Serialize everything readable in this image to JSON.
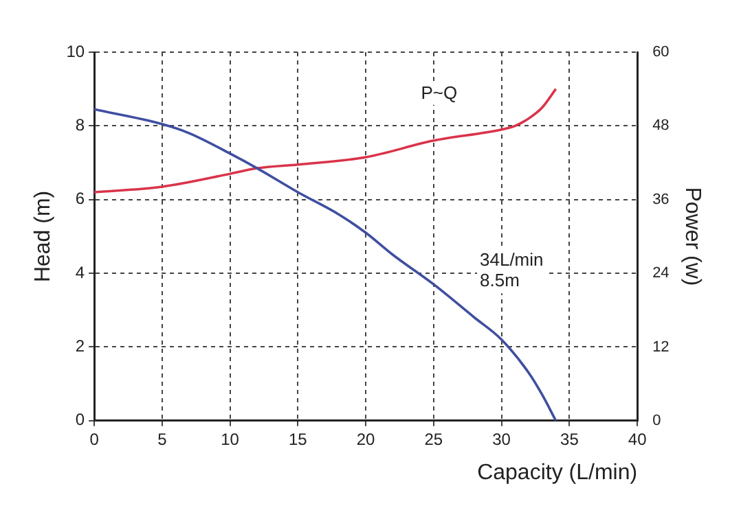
{
  "chart_data": {
    "type": "line",
    "xlabel": "Capacity (L/min)",
    "ylabel": "Head (m)",
    "y2label": "Power (w)",
    "xlim": [
      0,
      40
    ],
    "xticks": [
      0,
      5,
      10,
      15,
      20,
      25,
      30,
      35,
      40
    ],
    "ylim": [
      0,
      10
    ],
    "yticks": [
      0,
      2,
      4,
      6,
      8,
      10
    ],
    "y2lim": [
      0,
      60
    ],
    "y2ticks": [
      0,
      12,
      24,
      36,
      48,
      60
    ],
    "grid": true,
    "legend": false,
    "line_style": "solid",
    "marker": "none",
    "series": [
      {
        "color": "#3f4fa0",
        "x": [
          0,
          5,
          7,
          10,
          12,
          15,
          18,
          20,
          22,
          25,
          28,
          30,
          32,
          33,
          34
        ],
        "values": [
          8.45,
          8.05,
          7.8,
          7.25,
          6.85,
          6.2,
          5.6,
          5.1,
          4.5,
          3.7,
          2.8,
          2.2,
          1.3,
          0.7,
          0
        ]
      },
      {
        "name": "P~Q",
        "color": "#d9344a",
        "axis": "y2",
        "x": [
          0,
          5,
          10,
          12,
          15,
          20,
          25,
          30,
          31,
          32,
          33,
          34
        ],
        "values": [
          37.2,
          38.1,
          40.2,
          41.1,
          41.7,
          42.9,
          45.6,
          47.4,
          48,
          49.2,
          51,
          54
        ]
      }
    ],
    "annotations": [
      "34L/min\n8.5m"
    ]
  }
}
